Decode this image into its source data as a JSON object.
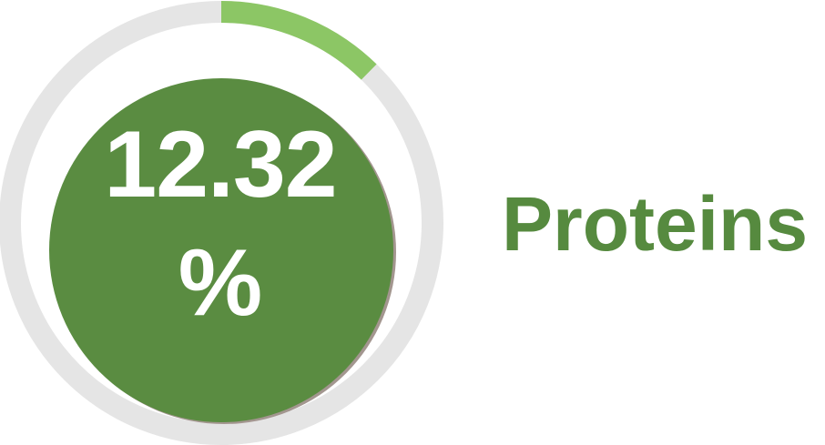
{
  "metric": {
    "value": "12.32",
    "unit": "%",
    "label": "Proteins",
    "progress_fraction": 0.1232
  },
  "colors": {
    "track": "#e5e5e5",
    "progress_arc": "#8cc665",
    "disc": "#5a8c41",
    "disc_shadow": "#a3968f",
    "value_text": "#ffffff",
    "label_text": "#568a3f"
  }
}
